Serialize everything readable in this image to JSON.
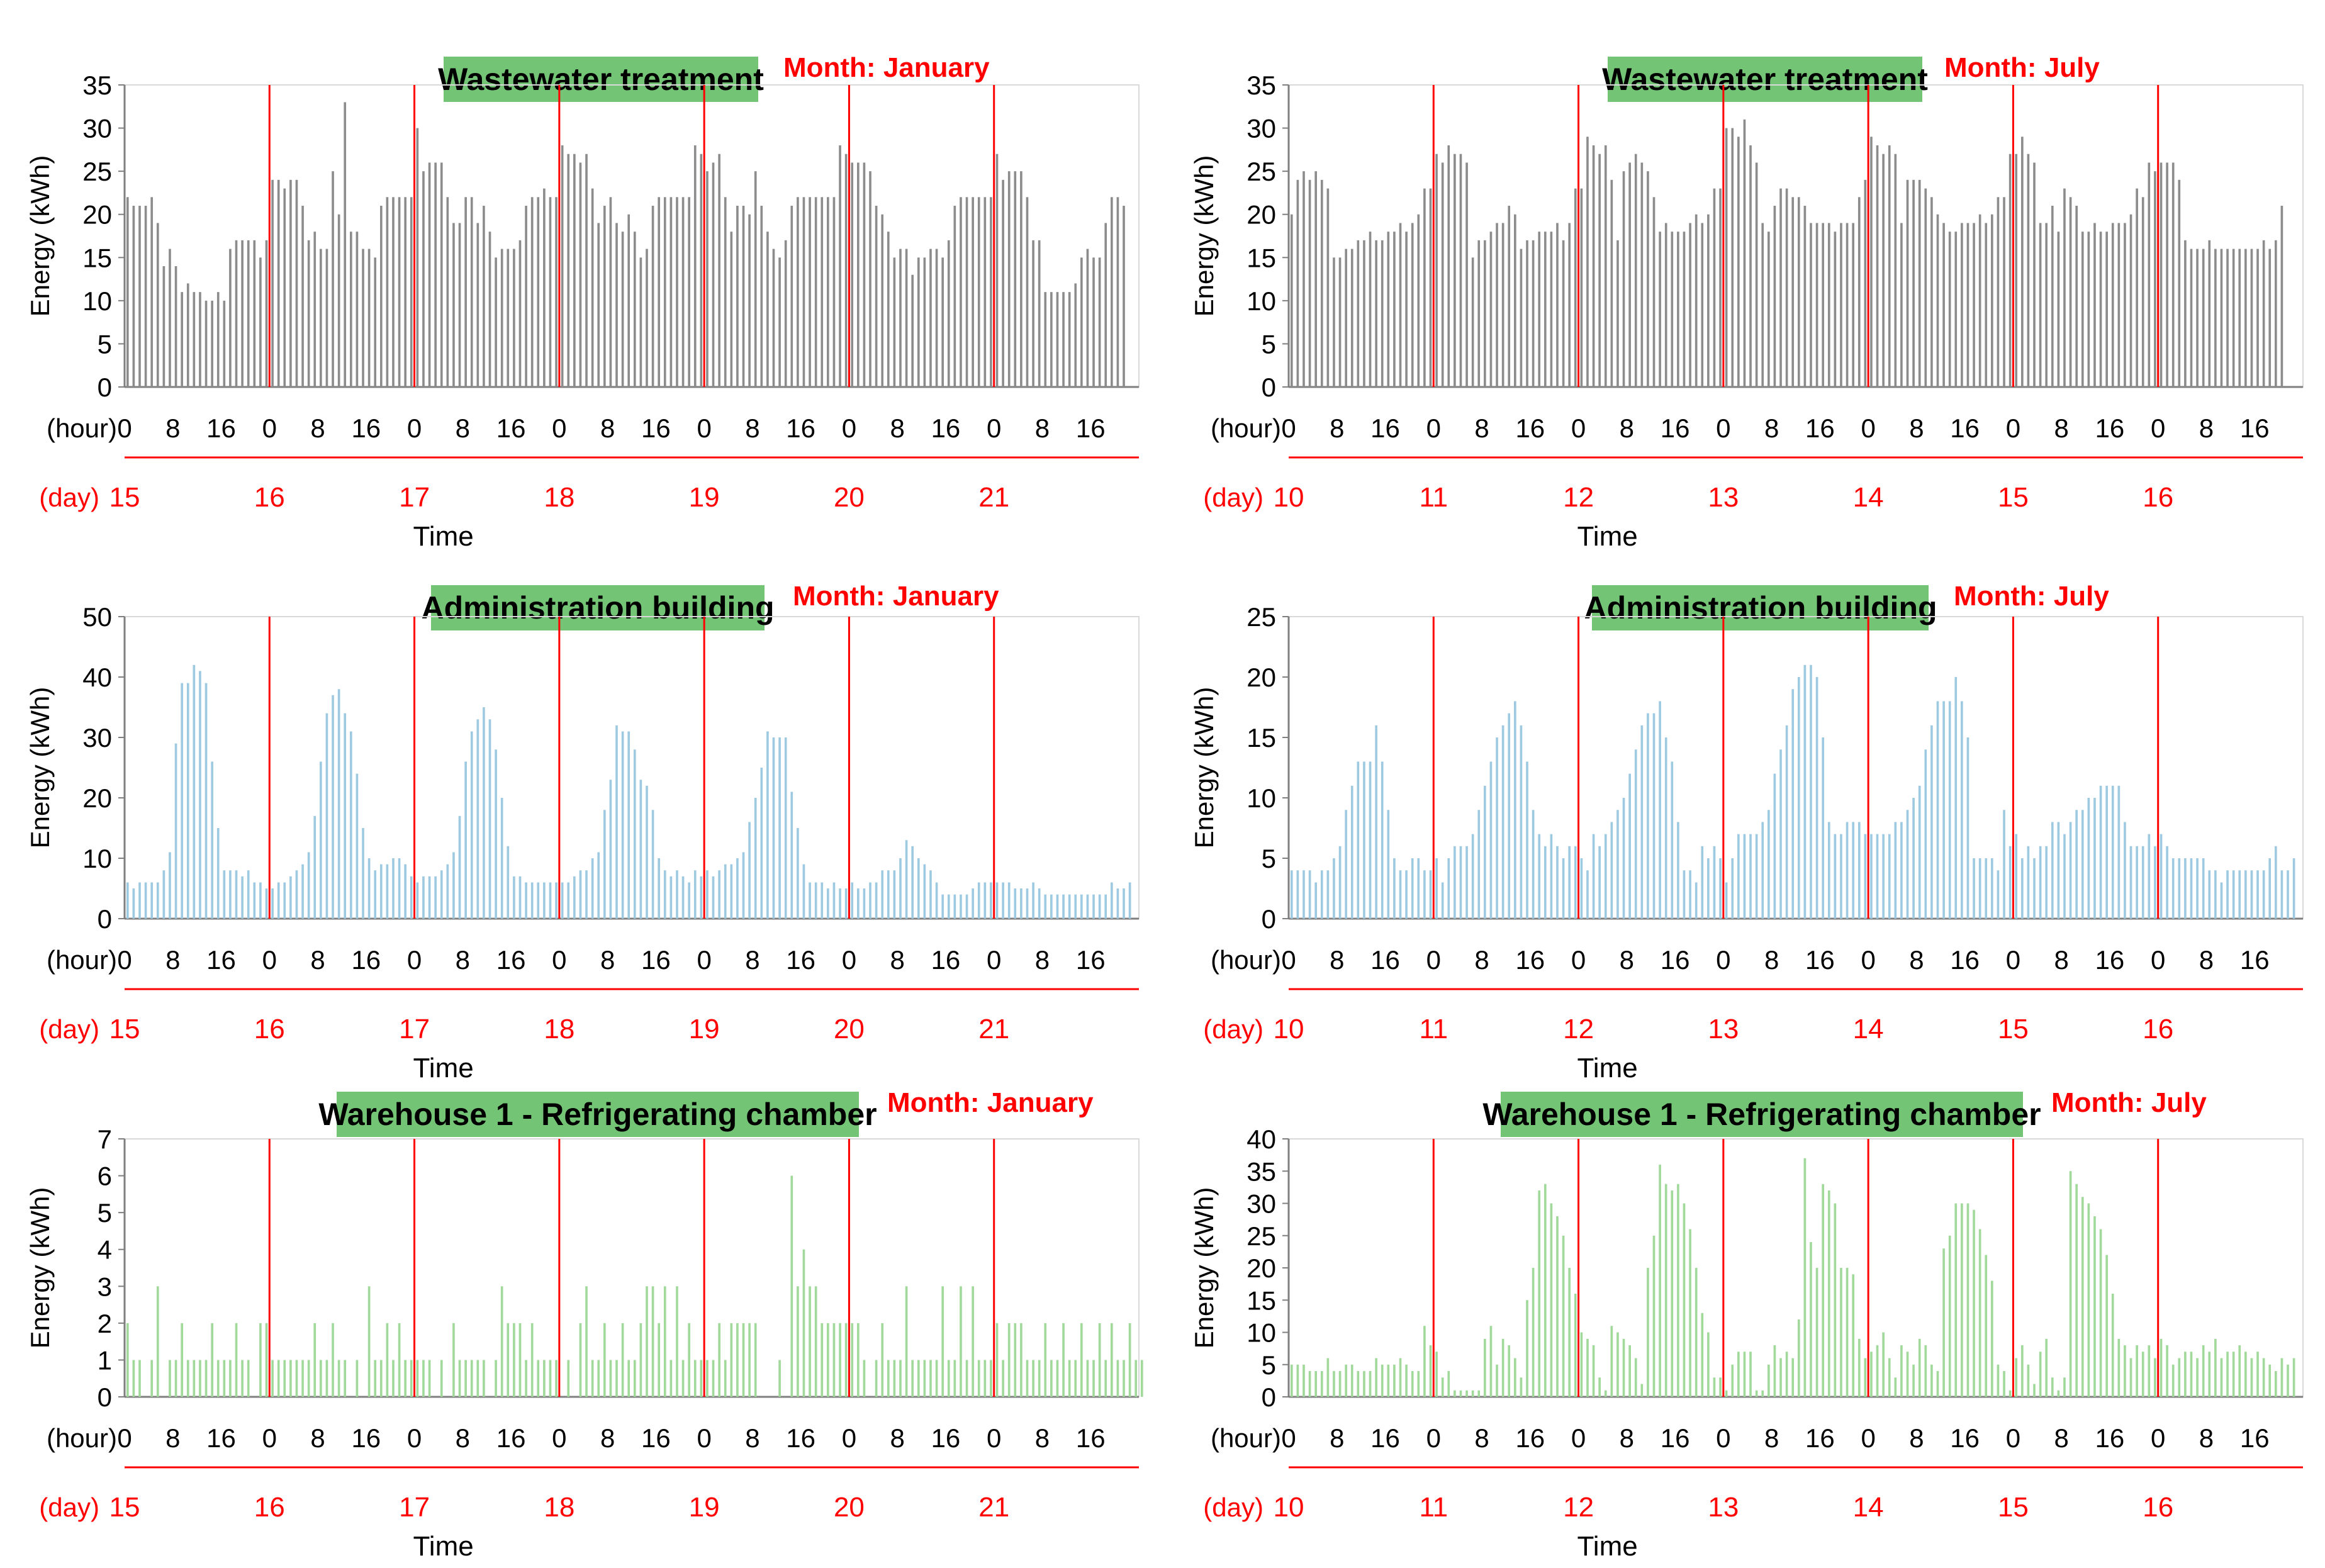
{
  "chart_data": [
    {
      "type": "bar",
      "title": "Wastewater treatment",
      "month": "Month: January",
      "ylabel": "Energy (kWh)",
      "xlabel": "Time",
      "hour_label": "(hour)",
      "day_label": "(day)",
      "ylim": [
        0,
        35
      ],
      "yticks": [
        0,
        5,
        10,
        15,
        20,
        25,
        30,
        35
      ],
      "hour_ticks": [
        "0",
        "8",
        "16"
      ],
      "days": [
        "15",
        "16",
        "17",
        "18",
        "19",
        "20",
        "21"
      ],
      "bar_color": "#8c8c8c",
      "values": [
        22,
        21,
        21,
        21,
        22,
        19,
        14,
        16,
        14,
        11,
        12,
        11,
        11,
        10,
        10,
        11,
        10,
        16,
        17,
        17,
        17,
        17,
        15,
        17,
        24,
        24,
        23,
        24,
        24,
        21,
        17,
        18,
        16,
        16,
        25,
        20,
        33,
        18,
        18,
        16,
        16,
        15,
        21,
        22,
        22,
        22,
        22,
        22,
        30,
        25,
        26,
        26,
        26,
        22,
        19,
        19,
        22,
        22,
        19,
        21,
        18,
        15,
        16,
        16,
        16,
        17,
        21,
        22,
        22,
        23,
        22,
        22,
        28,
        27,
        27,
        26,
        27,
        23,
        19,
        21,
        22,
        19,
        18,
        20,
        18,
        15,
        16,
        21,
        22,
        22,
        22,
        22,
        22,
        22,
        28,
        27,
        25,
        26,
        27,
        22,
        18,
        21,
        21,
        20,
        25,
        21,
        18,
        16,
        15,
        17,
        21,
        22,
        22,
        22,
        22,
        22,
        22,
        22,
        28,
        27,
        26,
        26,
        26,
        25,
        21,
        20,
        18,
        15,
        16,
        16,
        13,
        15,
        15,
        16,
        16,
        15,
        17,
        21,
        22,
        22,
        22,
        22,
        22,
        22,
        27,
        24,
        25,
        25,
        25,
        22,
        17,
        17,
        11,
        11,
        11,
        11,
        11,
        12,
        15,
        16,
        15,
        15,
        19,
        22,
        22,
        21
      ]
    },
    {
      "type": "bar",
      "title": "Wastewater treatment",
      "month": "Month: July",
      "ylabel": "Energy (kWh)",
      "xlabel": "Time",
      "hour_label": "(hour)",
      "day_label": "(day)",
      "ylim": [
        0,
        35
      ],
      "yticks": [
        0,
        5,
        10,
        15,
        20,
        25,
        30,
        35
      ],
      "hour_ticks": [
        "0",
        "8",
        "16"
      ],
      "days": [
        "10",
        "11",
        "12",
        "13",
        "14",
        "15",
        "16"
      ],
      "bar_color": "#8c8c8c",
      "values": [
        20,
        24,
        25,
        24,
        25,
        24,
        23,
        15,
        15,
        16,
        16,
        17,
        17,
        18,
        17,
        17,
        18,
        18,
        19,
        18,
        19,
        20,
        23,
        23,
        27,
        26,
        28,
        27,
        27,
        26,
        15,
        17,
        17,
        18,
        19,
        19,
        21,
        20,
        16,
        17,
        17,
        18,
        18,
        18,
        19,
        17,
        19,
        23,
        23,
        29,
        28,
        27,
        28,
        24,
        17,
        25,
        26,
        27,
        26,
        25,
        22,
        18,
        19,
        18,
        18,
        18,
        19,
        20,
        19,
        20,
        23,
        23,
        30,
        30,
        29,
        31,
        28,
        26,
        19,
        18,
        21,
        23,
        23,
        22,
        22,
        21,
        19,
        19,
        19,
        19,
        18,
        19,
        19,
        19,
        22,
        24,
        29,
        28,
        27,
        28,
        27,
        19,
        24,
        24,
        24,
        23,
        22,
        20,
        19,
        18,
        18,
        19,
        19,
        19,
        20,
        19,
        20,
        22,
        22,
        27,
        27,
        29,
        27,
        26,
        19,
        19,
        21,
        18,
        23,
        22,
        21,
        18,
        18,
        19,
        18,
        18,
        19,
        19,
        19,
        20,
        23,
        22,
        26,
        25,
        26,
        26,
        26,
        24,
        17,
        16,
        16,
        16,
        17,
        16,
        16,
        16,
        16,
        16,
        16,
        16,
        16,
        17,
        16,
        17,
        21
      ]
    },
    {
      "type": "bar",
      "title": "Administration building",
      "month": "Month: January",
      "ylabel": "Energy (kWh)",
      "xlabel": "Time",
      "hour_label": "(hour)",
      "day_label": "(day)",
      "ylim": [
        0,
        50
      ],
      "yticks": [
        0,
        10,
        20,
        30,
        40,
        50
      ],
      "hour_ticks": [
        "0",
        "8",
        "16"
      ],
      "days": [
        "15",
        "16",
        "17",
        "18",
        "19",
        "20",
        "21"
      ],
      "bar_color": "#9ecae1",
      "values": [
        6,
        5,
        6,
        6,
        6,
        6,
        8,
        11,
        29,
        39,
        39,
        42,
        41,
        39,
        26,
        15,
        8,
        8,
        8,
        7,
        8,
        6,
        6,
        5,
        5,
        6,
        6,
        7,
        8,
        9,
        11,
        17,
        26,
        34,
        37,
        38,
        34,
        31,
        24,
        15,
        10,
        8,
        9,
        9,
        10,
        10,
        9,
        7,
        6,
        7,
        7,
        7,
        8,
        9,
        11,
        17,
        26,
        31,
        33,
        35,
        33,
        28,
        20,
        12,
        7,
        7,
        6,
        6,
        6,
        6,
        6,
        6,
        6,
        6,
        7,
        8,
        8,
        10,
        11,
        18,
        23,
        32,
        31,
        31,
        28,
        23,
        22,
        18,
        10,
        8,
        7,
        8,
        7,
        6,
        8,
        7,
        8,
        7,
        8,
        9,
        9,
        10,
        11,
        16,
        20,
        25,
        31,
        30,
        30,
        30,
        21,
        15,
        9,
        6,
        6,
        6,
        5,
        6,
        5,
        5,
        6,
        5,
        5,
        6,
        6,
        8,
        8,
        8,
        10,
        13,
        12,
        10,
        9,
        8,
        6,
        4,
        4,
        4,
        4,
        4,
        5,
        6,
        6,
        6,
        6,
        6,
        6,
        5,
        5,
        5,
        6,
        5,
        4,
        4,
        4,
        4,
        4,
        4,
        4,
        4,
        4,
        4,
        4,
        6,
        5,
        5,
        6
      ]
    },
    {
      "type": "bar",
      "title": "Administration building",
      "month": "Month: July",
      "ylabel": "Energy (kWh)",
      "xlabel": "Time",
      "hour_label": "(hour)",
      "day_label": "(day)",
      "ylim": [
        0,
        25
      ],
      "yticks": [
        0,
        5,
        10,
        15,
        20,
        25
      ],
      "hour_ticks": [
        "0",
        "8",
        "16"
      ],
      "days": [
        "10",
        "11",
        "12",
        "13",
        "14",
        "15",
        "16"
      ],
      "bar_color": "#9ecae1",
      "values": [
        4,
        4,
        4,
        4,
        3,
        4,
        4,
        5,
        6,
        9,
        11,
        13,
        13,
        13,
        16,
        13,
        9,
        5,
        4,
        4,
        5,
        5,
        4,
        4,
        5,
        3,
        5,
        6,
        6,
        6,
        7,
        9,
        11,
        13,
        15,
        16,
        17,
        18,
        16,
        13,
        9,
        7,
        6,
        7,
        6,
        5,
        6,
        6,
        5,
        4,
        7,
        6,
        7,
        8,
        9,
        10,
        12,
        14,
        16,
        17,
        17,
        18,
        15,
        13,
        8,
        4,
        4,
        3,
        6,
        5,
        6,
        5,
        3,
        5,
        7,
        7,
        7,
        7,
        8,
        9,
        12,
        14,
        16,
        19,
        20,
        21,
        21,
        20,
        15,
        8,
        7,
        7,
        8,
        8,
        8,
        7,
        7,
        7,
        7,
        7,
        8,
        8,
        9,
        10,
        11,
        14,
        16,
        18,
        18,
        18,
        20,
        18,
        15,
        5,
        5,
        5,
        5,
        4,
        9,
        6,
        7,
        5,
        6,
        5,
        6,
        6,
        8,
        8,
        7,
        8,
        9,
        9,
        10,
        10,
        11,
        11,
        11,
        11,
        8,
        6,
        6,
        6,
        7,
        6,
        7,
        6,
        5,
        5,
        5,
        5,
        5,
        5,
        4,
        4,
        3,
        4,
        4,
        4,
        4,
        4,
        4,
        4,
        5,
        6,
        4,
        4,
        5
      ]
    },
    {
      "type": "bar",
      "title": "Warehouse 1 - Refrigerating chamber",
      "month": "Month: January",
      "ylabel": "Energy (kWh)",
      "xlabel": "Time",
      "hour_label": "(hour)",
      "day_label": "(day)",
      "ylim": [
        0,
        7
      ],
      "yticks": [
        0,
        1,
        2,
        3,
        4,
        5,
        6,
        7
      ],
      "hour_ticks": [
        "0",
        "8",
        "16"
      ],
      "days": [
        "15",
        "16",
        "17",
        "18",
        "19",
        "20",
        "21"
      ],
      "bar_color": "#a1d99b",
      "values": [
        2,
        1,
        1,
        0,
        1,
        3,
        0,
        1,
        1,
        2,
        1,
        1,
        1,
        1,
        2,
        1,
        1,
        1,
        2,
        1,
        1,
        0,
        2,
        2,
        1,
        1,
        1,
        1,
        1,
        1,
        1,
        2,
        1,
        1,
        2,
        1,
        1,
        0,
        1,
        0,
        3,
        1,
        1,
        2,
        1,
        2,
        1,
        1,
        1,
        1,
        1,
        0,
        1,
        0,
        2,
        1,
        1,
        1,
        1,
        1,
        0,
        1,
        3,
        2,
        2,
        2,
        1,
        2,
        1,
        1,
        1,
        1,
        0,
        1,
        0,
        2,
        3,
        1,
        1,
        2,
        1,
        1,
        2,
        1,
        1,
        2,
        3,
        3,
        2,
        3,
        1,
        3,
        1,
        2,
        1,
        1,
        1,
        1,
        2,
        1,
        2,
        2,
        2,
        2,
        2,
        0,
        0,
        0,
        1,
        0,
        6,
        3,
        4,
        3,
        3,
        2,
        2,
        2,
        2,
        2,
        2,
        2,
        1,
        0,
        1,
        2,
        1,
        1,
        1,
        3,
        1,
        1,
        1,
        1,
        1,
        3,
        1,
        1,
        3,
        1,
        3,
        1,
        1,
        1,
        2,
        1,
        2,
        2,
        2,
        1,
        1,
        1,
        2,
        1,
        1,
        2,
        1,
        1,
        2,
        1,
        1,
        2,
        1,
        2,
        1,
        1,
        2,
        1,
        1
      ]
    },
    {
      "type": "bar",
      "title": "Warehouse 1 - Refrigerating chamber",
      "month": "Month: July",
      "ylabel": "Energy (kWh)",
      "xlabel": "Time",
      "hour_label": "(hour)",
      "day_label": "(day)",
      "ylim": [
        0,
        40
      ],
      "yticks": [
        0,
        5,
        10,
        15,
        20,
        25,
        30,
        35,
        40
      ],
      "hour_ticks": [
        "0",
        "8",
        "16"
      ],
      "days": [
        "10",
        "11",
        "12",
        "13",
        "14",
        "15",
        "16"
      ],
      "bar_color": "#a1d99b",
      "values": [
        5,
        5,
        5,
        4,
        4,
        4,
        6,
        4,
        4,
        5,
        5,
        4,
        4,
        4,
        6,
        5,
        5,
        5,
        6,
        5,
        4,
        4,
        11,
        8,
        7,
        3,
        4,
        1,
        1,
        1,
        1,
        1,
        9,
        11,
        5,
        9,
        8,
        6,
        3,
        15,
        20,
        32,
        33,
        30,
        28,
        25,
        20,
        16,
        10,
        9,
        8,
        3,
        1,
        11,
        10,
        9,
        8,
        6,
        2,
        20,
        25,
        36,
        33,
        32,
        33,
        30,
        26,
        20,
        13,
        10,
        3,
        3,
        1,
        5,
        7,
        7,
        7,
        1,
        1,
        5,
        8,
        6,
        7,
        6,
        12,
        37,
        24,
        20,
        33,
        32,
        30,
        20,
        20,
        19,
        9,
        6,
        7,
        8,
        10,
        6,
        3,
        8,
        7,
        5,
        9,
        8,
        5,
        4,
        23,
        25,
        30,
        30,
        30,
        29,
        26,
        22,
        18,
        5,
        4,
        1,
        6,
        8,
        5,
        2,
        7,
        9,
        3,
        1,
        3,
        35,
        33,
        31,
        30,
        28,
        26,
        22,
        16,
        9,
        8,
        6,
        8,
        7,
        8,
        6,
        9,
        8,
        5,
        6,
        7,
        7,
        6,
        8,
        7,
        9,
        6,
        7,
        7,
        8,
        7,
        6,
        7,
        6,
        5,
        4,
        6,
        5,
        6
      ]
    }
  ]
}
